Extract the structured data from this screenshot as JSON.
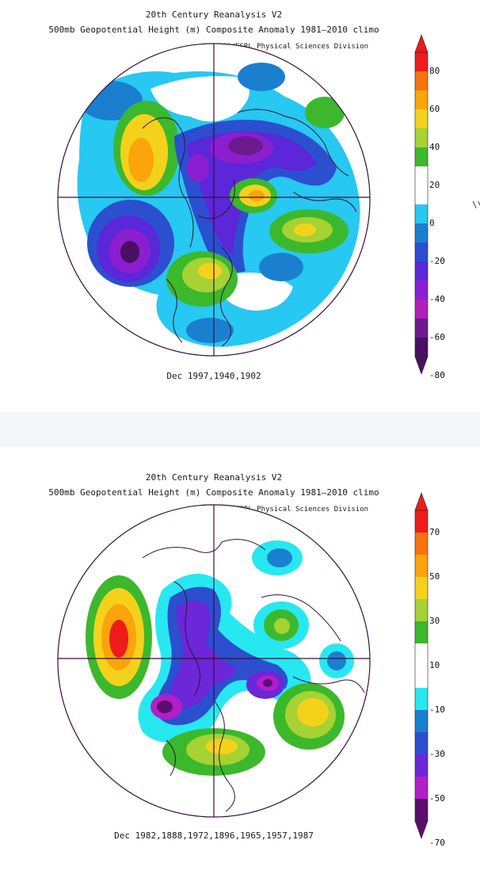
{
  "top": {
    "title1": "20th Century Reanalysis V2",
    "title2": "500mb Geopotential Height (m) Composite Anomaly 1981–2010 climo",
    "credit": "NOAA/ESRL Physical Sciences Division",
    "caption": "Dec 1997,1940,1902",
    "colorbar_labels": [
      "80",
      "60",
      "40",
      "20",
      "0",
      "-20",
      "-40",
      "-60",
      "-80"
    ],
    "colorbar_colors": [
      "#ee1b1b",
      "#f6730e",
      "#fba40b",
      "#f4d21b",
      "#a6d233",
      "#3cb82c",
      "#ffffff",
      "#ffffff",
      "#27c8f1",
      "#1b7fd0",
      "#2c4fd0",
      "#5b27d8",
      "#8c1ed2",
      "#b31eb8",
      "#6e1a8f",
      "#4a0f63"
    ],
    "stray_text": "\\\\"
  },
  "bottom": {
    "title1": "20th Century Reanalysis V2",
    "title2": "500mb Geopotential Height (m) Composite Anomaly 1981–2010 climo",
    "credit": "NOAA/ESRL Physical Sciences Division",
    "caption": "Dec 1982,1888,1972,1896,1965,1957,1987",
    "colorbar_labels": [
      "70",
      "50",
      "30",
      "10",
      "-10",
      "-30",
      "-50",
      "-70"
    ],
    "colorbar_colors": [
      "#ee1b1b",
      "#f6730e",
      "#fba40b",
      "#f4d21b",
      "#a6d233",
      "#3cb82c",
      "#ffffff",
      "#ffffff",
      "#27e8f1",
      "#1b7fd0",
      "#2c4fd0",
      "#6b27d8",
      "#b31ec8",
      "#5a0f6f"
    ]
  }
}
